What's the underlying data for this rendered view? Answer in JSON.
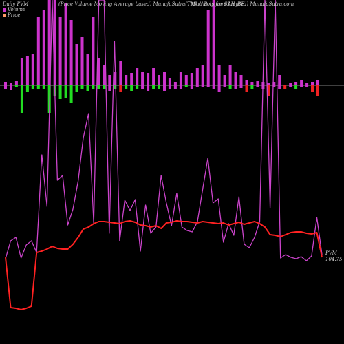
{
  "header": {
    "left": "Daily PVM",
    "mid": "(Price Volume Moving Average based) MunafaSutra(TM) charts for SAH_BE",
    "right": "(Sah Polymers Limited) MunafaSutra.com"
  },
  "legend": {
    "title": "Daily PVM",
    "items": [
      {
        "label": "Volume",
        "color": "#cc33cc"
      },
      {
        "label": "Price",
        "color": "#ff9966"
      }
    ]
  },
  "last_label": {
    "prefix": "PVM",
    "value": "104.75"
  },
  "colors": {
    "background": "#000000",
    "pvm_line": "#ff2222",
    "volume_line": "#cc44cc",
    "bar_up": "#cc33cc",
    "bar_down_magenta": "#cc33cc",
    "bar_green": "#22dd22",
    "bar_red": "#ee2222",
    "baseline": "#ffffff"
  },
  "chart_data": {
    "type": "bar",
    "title": "",
    "xlabel": "",
    "ylabel": "",
    "grid": false,
    "legend_position": "top-left",
    "volume_bars": {
      "up": [
        5,
        4,
        6,
        40,
        43,
        46,
        100,
        110,
        140,
        130,
        100,
        120,
        95,
        60,
        70,
        45,
        100,
        40,
        30,
        15,
        20,
        35,
        15,
        18,
        25,
        20,
        18,
        25,
        15,
        20,
        10,
        5,
        20,
        15,
        18,
        25,
        30,
        110,
        130,
        30,
        15,
        30,
        20,
        15,
        8,
        5,
        6,
        5,
        3,
        5,
        15,
        0,
        3,
        5,
        8,
        3,
        5,
        8
      ],
      "down": [
        5,
        7,
        3,
        40,
        10,
        5,
        5,
        5,
        40,
        15,
        20,
        18,
        25,
        10,
        5,
        8,
        5,
        5,
        5,
        8,
        5,
        10,
        5,
        8,
        5,
        5,
        8,
        5,
        5,
        8,
        5,
        5,
        5,
        3,
        5,
        3,
        2,
        3,
        5,
        10,
        3,
        5,
        5,
        4,
        10,
        5,
        3,
        5,
        15,
        3,
        5,
        5,
        3,
        5,
        3,
        3,
        10,
        15
      ],
      "down_color": [
        "m",
        "m",
        "g",
        "g",
        "g",
        "g",
        "g",
        "g",
        "g",
        "g",
        "g",
        "g",
        "g",
        "g",
        "g",
        "g",
        "g",
        "g",
        "g",
        "m",
        "g",
        "r",
        "g",
        "g",
        "g",
        "m",
        "m",
        "g",
        "g",
        "m",
        "m",
        "m",
        "m",
        "g",
        "m",
        "m",
        "m",
        "m",
        "m",
        "m",
        "m",
        "g",
        "m",
        "m",
        "r",
        "g",
        "m",
        "m",
        "r",
        "m",
        "m",
        "r",
        "m",
        "g",
        "m",
        "m",
        "r",
        "r"
      ]
    },
    "volume_series": [
      376,
      350,
      345,
      375,
      356,
      350,
      367,
      225,
      300,
      325,
      262,
      255,
      327,
      304,
      263,
      200,
      165,
      325,
      357,
      329,
      339,
      342,
      350,
      291,
      306,
      290,
      365,
      298,
      339,
      330,
      255,
      295,
      328,
      281,
      330,
      335,
      337,
      322,
      275,
      230,
      295,
      289,
      352,
      325,
      342,
      286,
      355,
      360,
      345,
      322,
      285,
      302,
      340,
      375,
      370,
      374,
      376,
      373,
      379,
      372,
      316,
      370
    ],
    "pvm_series": [
      374,
      367,
      365,
      370,
      368,
      366,
      367,
      365,
      362,
      358,
      361,
      362,
      362,
      355,
      345,
      333,
      330,
      325,
      322,
      322,
      323,
      324,
      325,
      322,
      321,
      323,
      327,
      328,
      330,
      328,
      332,
      324,
      323,
      321,
      322,
      322,
      323,
      324,
      322,
      323,
      324,
      325,
      324,
      327,
      325,
      323,
      326,
      324,
      322,
      325,
      330,
      341,
      342,
      344,
      341,
      338,
      337,
      337,
      339,
      340,
      338,
      374
    ]
  }
}
